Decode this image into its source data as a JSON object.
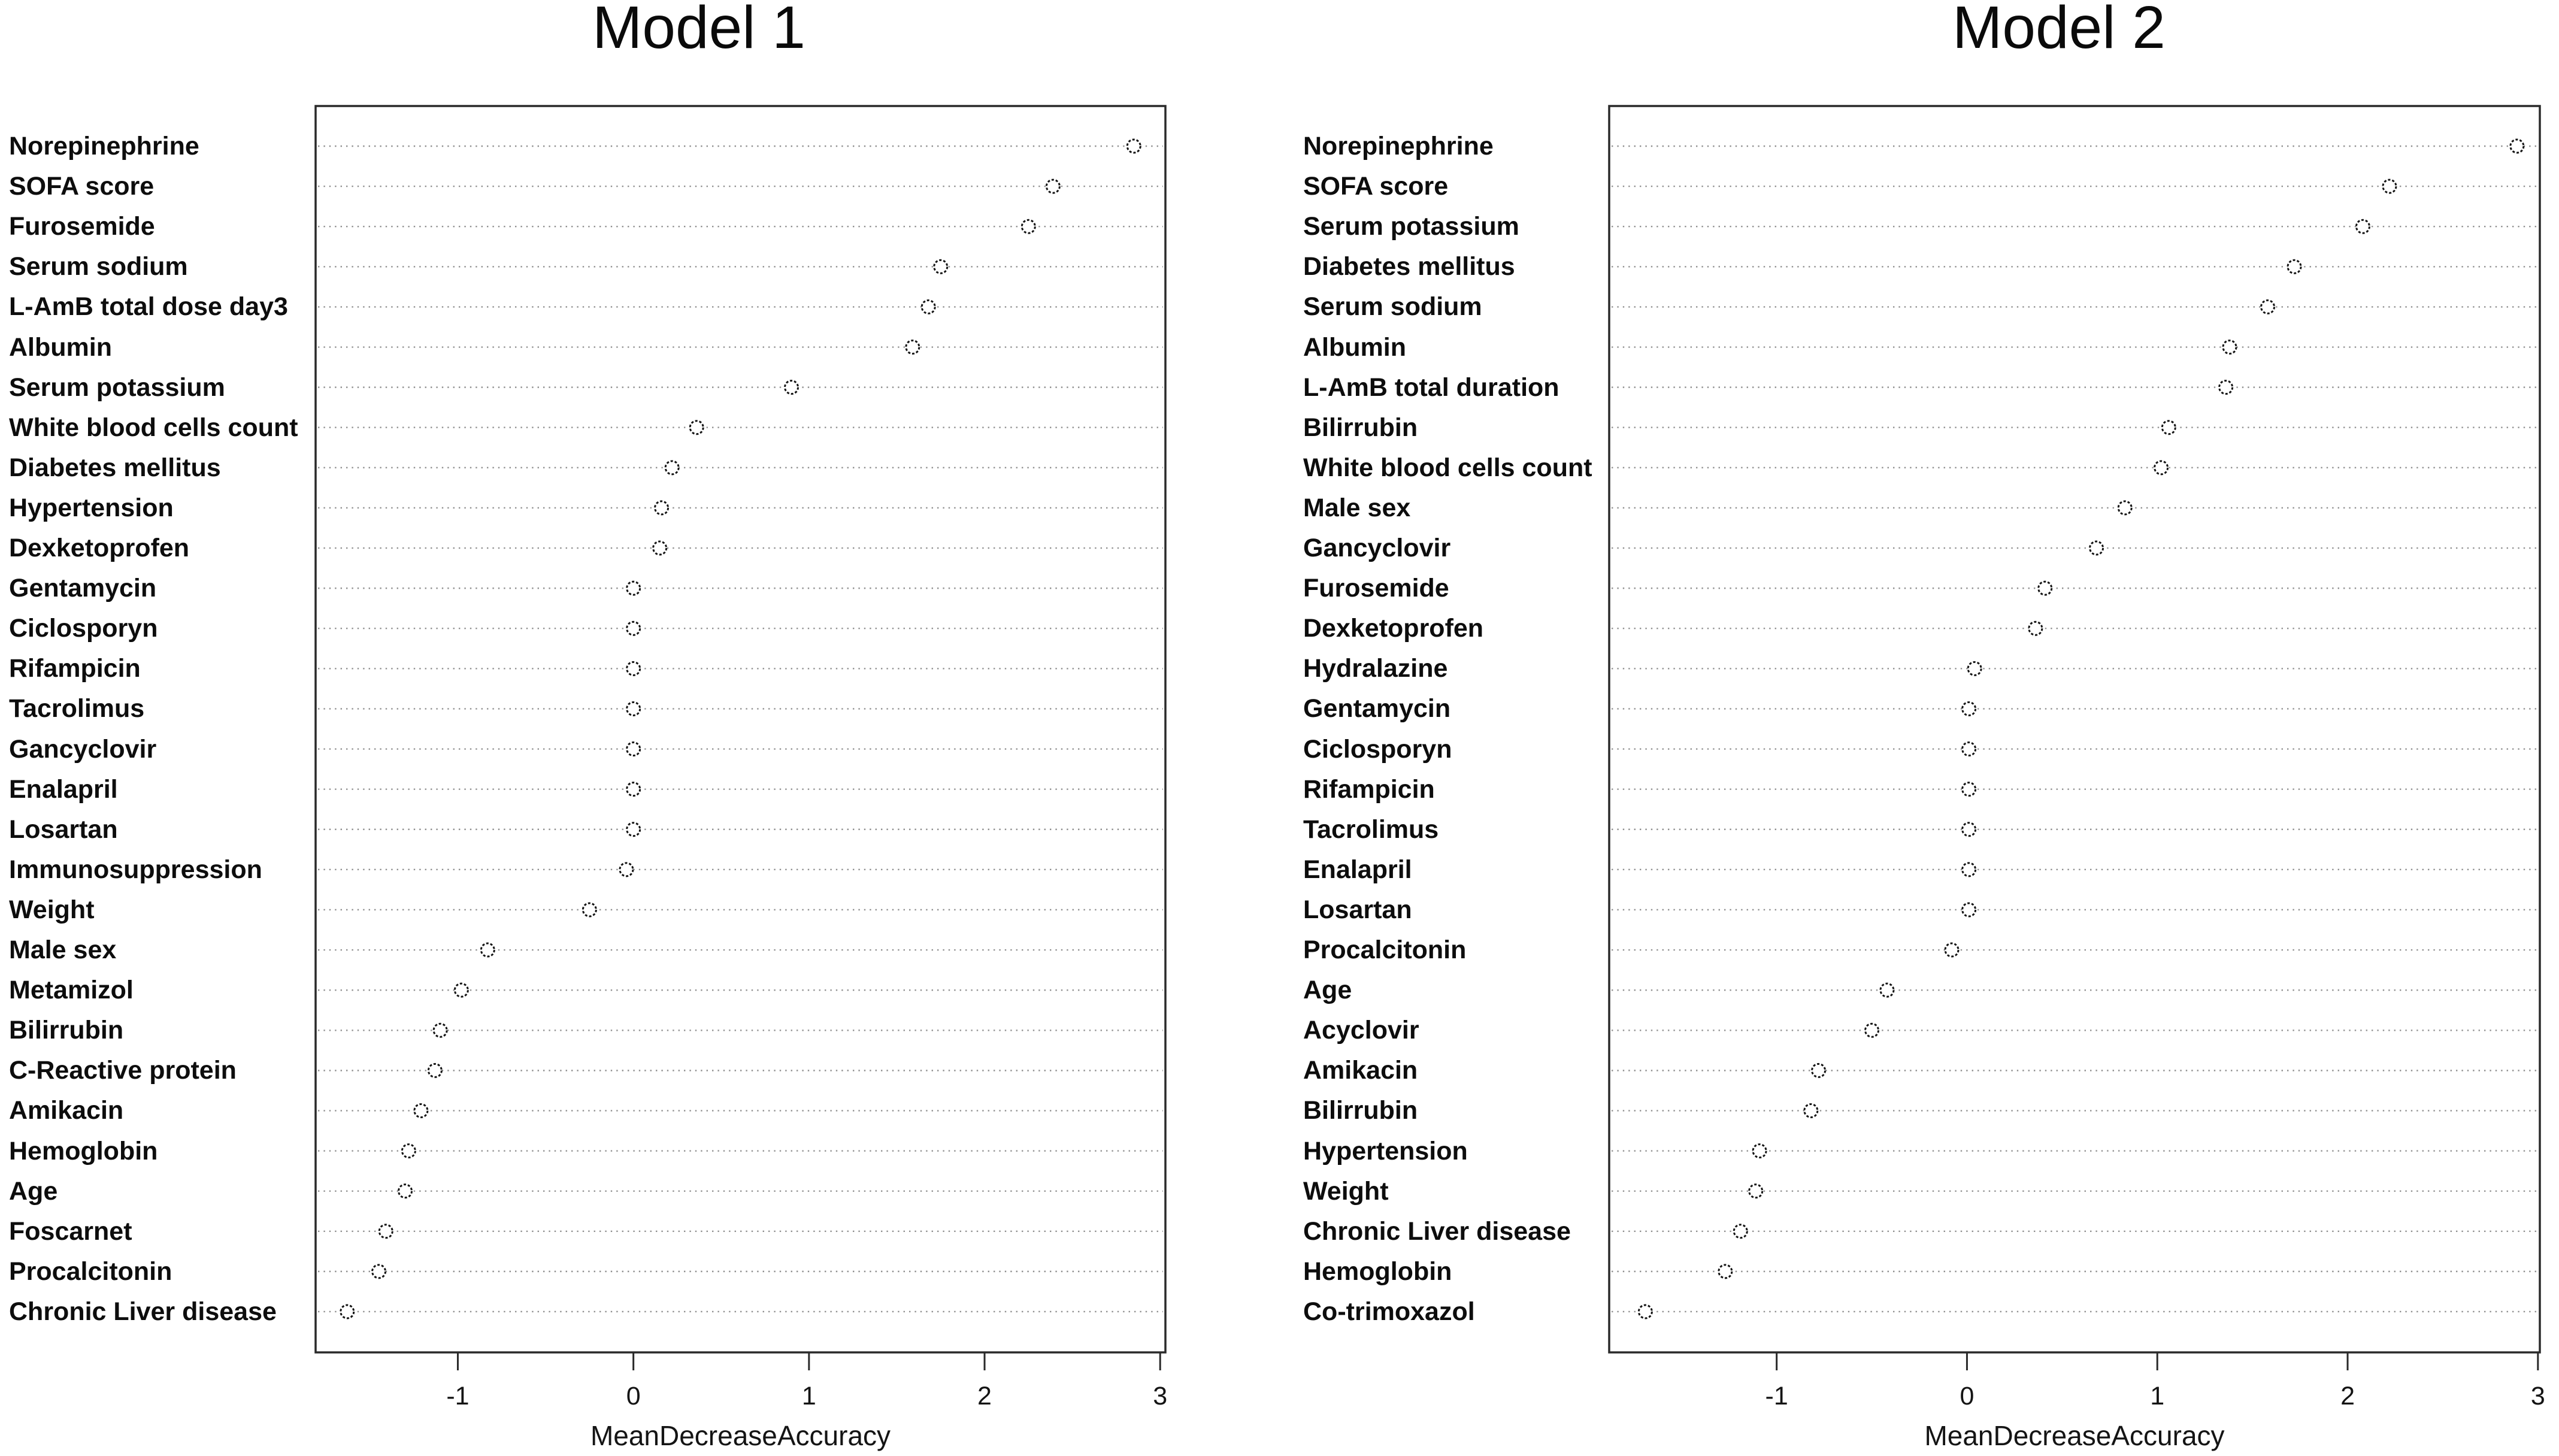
{
  "figure": {
    "background": "#ffffff",
    "text_color": "#141414",
    "grid_color": "#909090",
    "frame_color": "#2a2a2a",
    "point_style": "open-circle"
  },
  "chart_data": [
    {
      "type": "scatter",
      "title": "Model 1",
      "xlabel": "MeanDecreaseAccuracy",
      "xlim": [
        -1.81,
        3.03
      ],
      "xticks": [
        -1,
        0,
        1,
        2,
        3
      ],
      "grid": "horizontal-dotted",
      "legend": "none",
      "categories": [
        "Norepinephrine",
        "SOFA score",
        "Furosemide",
        "Serum sodium",
        "L-AmB total dose day3",
        "Albumin",
        "Serum potassium",
        "White blood cells count",
        "Diabetes mellitus",
        "Hypertension",
        "Dexketoprofen",
        "Gentamycin",
        "Ciclosporyn",
        "Rifampicin",
        "Tacrolimus",
        "Gancyclovir",
        "Enalapril",
        "Losartan",
        "Immunosuppression",
        "Weight",
        "Male sex",
        "Metamizol",
        "Bilirrubin",
        "C-Reactive protein",
        "Amikacin",
        "Hemoglobin",
        "Age",
        "Foscarnet",
        "Procalcitonin",
        "Chronic Liver disease"
      ],
      "values": [
        2.85,
        2.39,
        2.25,
        1.75,
        1.68,
        1.59,
        0.9,
        0.36,
        0.22,
        0.16,
        0.15,
        0.0,
        0.0,
        0.0,
        0.0,
        0.0,
        0.0,
        0.0,
        -0.04,
        -0.25,
        -0.83,
        -0.98,
        -1.1,
        -1.13,
        -1.21,
        -1.28,
        -1.3,
        -1.41,
        -1.45,
        -1.63
      ]
    },
    {
      "type": "scatter",
      "title": "Model 2",
      "xlabel": "MeanDecreaseAccuracy",
      "xlim": [
        -1.88,
        3.01
      ],
      "xticks": [
        -1,
        0,
        1,
        2,
        3
      ],
      "grid": "horizontal-dotted",
      "legend": "none",
      "categories": [
        "Norepinephrine",
        "SOFA score",
        "Serum potassium",
        "Diabetes mellitus",
        "Serum sodium",
        "Albumin",
        "L-AmB total duration",
        "Bilirrubin",
        "White blood cells count",
        "Male sex",
        "Gancyclovir",
        "Furosemide",
        "Dexketoprofen",
        "Hydralazine",
        "Gentamycin",
        "Ciclosporyn",
        "Rifampicin",
        "Tacrolimus",
        "Enalapril",
        "Losartan",
        "Procalcitonin",
        "Age",
        "Acyclovir",
        "Amikacin",
        "Bilirrubin",
        "Hypertension",
        "Weight",
        "Chronic Liver disease",
        "Hemoglobin",
        "Co-trimoxazol"
      ],
      "values": [
        2.89,
        2.22,
        2.08,
        1.72,
        1.58,
        1.38,
        1.36,
        1.06,
        1.02,
        0.83,
        0.68,
        0.41,
        0.36,
        0.04,
        0.01,
        0.01,
        0.01,
        0.01,
        0.01,
        0.01,
        -0.08,
        -0.42,
        -0.5,
        -0.78,
        -0.82,
        -1.09,
        -1.11,
        -1.19,
        -1.27,
        -1.69
      ]
    }
  ]
}
